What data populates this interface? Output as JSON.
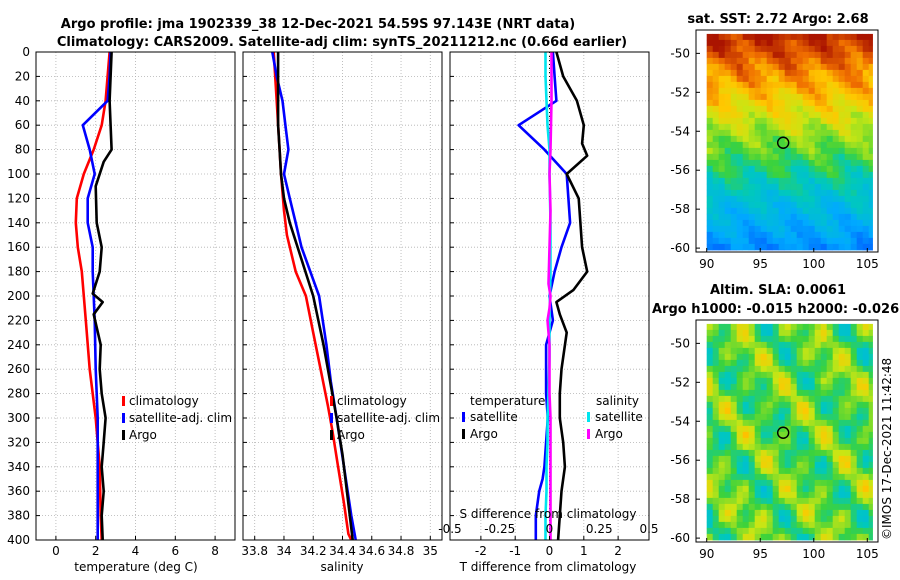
{
  "title": {
    "line1": "Argo profile: jma 1902339_38 12-Dec-2021 54.59S 97.143E (NRT data)",
    "line2": "Climatology: CARS2009. Satellite-adj clim: synTS_20211212.nc (0.66d earlier)"
  },
  "credit": "©IMOS 17-Dec-2021 11:42:48",
  "colors": {
    "climatology": "#ff0000",
    "satellite": "#0000ff",
    "argo": "#000000",
    "sal_satellite": "#00e5ee",
    "sal_argo": "#ff00ff"
  },
  "chart_data": [
    {
      "type": "line",
      "name": "temperature-profile",
      "xlabel": "temperature (deg C)",
      "ylabel": "",
      "xlim": [
        -1,
        9
      ],
      "ylim": [
        400,
        0
      ],
      "xticks": [
        "0",
        "2",
        "4",
        "6",
        "8"
      ],
      "yticks": [
        "0",
        "20",
        "40",
        "60",
        "80",
        "100",
        "120",
        "140",
        "160",
        "180",
        "200",
        "220",
        "240",
        "260",
        "280",
        "300",
        "320",
        "340",
        "360",
        "380",
        "400"
      ],
      "legend": [
        "climatology",
        "satellite-adj. clim",
        "Argo"
      ],
      "series": [
        {
          "name": "climatology",
          "color": "#ff0000",
          "x": [
            2.7,
            2.6,
            2.5,
            2.3,
            1.9,
            1.4,
            1.05,
            1.0,
            1.1,
            1.3,
            1.5,
            1.7,
            2.0,
            2.2,
            2.25,
            2.3
          ],
          "y": [
            0,
            20,
            40,
            60,
            80,
            100,
            120,
            140,
            160,
            180,
            220,
            260,
            300,
            340,
            380,
            400
          ]
        },
        {
          "name": "satellite-adj. clim",
          "color": "#0000ff",
          "x": [
            2.75,
            2.7,
            2.6,
            1.35,
            1.7,
            1.95,
            1.6,
            1.6,
            1.85,
            1.85,
            1.9,
            1.95,
            2.0,
            2.1,
            2.1,
            2.1,
            2.1
          ],
          "y": [
            0,
            20,
            40,
            60,
            80,
            100,
            120,
            140,
            160,
            180,
            200,
            220,
            260,
            300,
            340,
            380,
            400
          ]
        },
        {
          "name": "Argo",
          "color": "#000000",
          "x": [
            2.8,
            2.75,
            2.7,
            2.75,
            2.8,
            2.4,
            2.0,
            2.05,
            2.3,
            2.2,
            1.85,
            2.35,
            1.9,
            2.25,
            2.2,
            2.3,
            2.5,
            2.4,
            2.3,
            2.4,
            2.3,
            2.35
          ],
          "y": [
            0,
            20,
            40,
            60,
            80,
            90,
            110,
            140,
            160,
            180,
            198,
            205,
            215,
            240,
            260,
            280,
            300,
            320,
            340,
            360,
            380,
            400
          ]
        }
      ]
    },
    {
      "type": "line",
      "name": "salinity-profile",
      "xlabel": "salinity",
      "xlim": [
        33.72,
        35.08
      ],
      "ylim": [
        400,
        0
      ],
      "xticks": [
        "33.8",
        "34",
        "34.2",
        "34.4",
        "34.6",
        "34.8",
        "35"
      ],
      "legend": [
        "climatology",
        "satellite-adj. clim",
        "Argo"
      ],
      "series": [
        {
          "name": "climatology",
          "color": "#ff0000",
          "x": [
            33.93,
            33.95,
            33.97,
            33.98,
            34.0,
            34.02,
            34.08,
            34.15,
            34.2,
            34.25,
            34.3,
            34.33,
            34.37,
            34.41,
            34.44,
            34.46
          ],
          "y": [
            0,
            40,
            80,
            100,
            130,
            150,
            180,
            200,
            230,
            260,
            290,
            310,
            340,
            370,
            395,
            400
          ]
        },
        {
          "name": "satellite-adj. clim",
          "color": "#0000ff",
          "x": [
            33.92,
            33.95,
            33.99,
            34.01,
            34.03,
            34.0,
            34.04,
            34.08,
            34.12,
            34.18,
            34.24,
            34.29,
            34.32,
            34.36,
            34.41,
            34.46,
            34.49
          ],
          "y": [
            0,
            20,
            40,
            60,
            80,
            100,
            120,
            140,
            160,
            180,
            200,
            240,
            270,
            300,
            340,
            380,
            400
          ]
        },
        {
          "name": "Argo",
          "color": "#000000",
          "x": [
            33.96,
            33.96,
            33.96,
            33.96,
            33.97,
            33.98,
            34.0,
            34.04,
            34.12,
            34.2,
            34.27,
            34.33,
            34.36,
            34.4,
            34.43,
            34.45,
            34.47
          ],
          "y": [
            0,
            20,
            40,
            60,
            80,
            100,
            120,
            140,
            170,
            200,
            240,
            280,
            300,
            330,
            360,
            380,
            400
          ]
        }
      ]
    },
    {
      "type": "line",
      "name": "difference-from-climatology",
      "xlabel": "T difference from climatology",
      "top_xlabel": "S difference from climatology",
      "xlim": [
        -2.9,
        2.9
      ],
      "ylim": [
        400,
        0
      ],
      "xticks": [
        "-2",
        "-1",
        "0",
        "1",
        "2"
      ],
      "top_xticks": [
        "-0.5",
        "-0.25",
        "0",
        "0.25",
        "0.5"
      ],
      "legend_temperature": {
        "title": "temperature",
        "items": [
          "satellite",
          "Argo"
        ]
      },
      "legend_salinity": {
        "title": "salinity",
        "items": [
          "satellite",
          "Argo"
        ]
      },
      "series": [
        {
          "name": "T satellite",
          "color": "#0000ff",
          "x": [
            0.1,
            0.15,
            0.2,
            -0.9,
            -0.15,
            0.5,
            0.55,
            0.6,
            0.35,
            0.15,
            0.0,
            0.1,
            -0.1,
            -0.1,
            -0.1,
            -0.05,
            -0.1,
            -0.15,
            -0.2,
            -0.3,
            -0.35,
            -0.4,
            -0.4,
            -0.4
          ],
          "y": [
            0,
            20,
            40,
            60,
            80,
            100,
            120,
            140,
            160,
            180,
            200,
            220,
            240,
            260,
            280,
            300,
            320,
            340,
            350,
            360,
            370,
            380,
            390,
            400
          ]
        },
        {
          "name": "T Argo",
          "color": "#000000",
          "x": [
            0.2,
            0.4,
            0.8,
            1.0,
            0.95,
            1.1,
            0.5,
            0.85,
            0.9,
            0.95,
            1.1,
            0.7,
            0.2,
            0.3,
            0.5,
            0.35,
            0.3,
            0.3,
            0.4,
            0.45,
            0.35,
            0.3,
            0.25
          ],
          "y": [
            0,
            20,
            40,
            60,
            75,
            85,
            100,
            120,
            140,
            160,
            180,
            195,
            205,
            215,
            230,
            260,
            280,
            300,
            320,
            340,
            360,
            380,
            400
          ]
        },
        {
          "name": "S satellite",
          "color": "#00e5ee",
          "x": [
            -0.02,
            -0.02,
            -0.015,
            -0.01,
            0.0,
            0.0,
            0.005,
            0.005,
            0.0,
            0.0,
            -0.005,
            -0.01,
            -0.01,
            -0.015,
            -0.015,
            -0.02,
            -0.02,
            -0.02
          ],
          "y": [
            0,
            20,
            40,
            60,
            80,
            100,
            140,
            180,
            220,
            250,
            280,
            300,
            320,
            340,
            360,
            380,
            390,
            400
          ]
        },
        {
          "name": "S Argo",
          "color": "#ff00ff",
          "x": [
            0.01,
            0.01,
            0.005,
            0.0,
            0.005,
            0.0,
            -0.005,
            0.005,
            0.0,
            -0.01,
            0.0,
            0.0,
            0.0,
            0.005,
            0.005,
            0.005,
            0.005
          ],
          "y": [
            0,
            40,
            80,
            100,
            130,
            160,
            190,
            200,
            210,
            220,
            240,
            260,
            280,
            300,
            320,
            360,
            400
          ]
        }
      ]
    },
    {
      "type": "heatmap",
      "name": "sat-sst-map",
      "title": "sat. SST: 2.72 Argo: 2.68",
      "xlim": [
        89,
        106
      ],
      "ylim": [
        -60.2,
        -48.8
      ],
      "xticks": [
        "90",
        "95",
        "100",
        "105"
      ],
      "yticks": [
        "-50",
        "-52",
        "-54",
        "-56",
        "-58",
        "-60"
      ],
      "argo_position": {
        "lon": 97.143,
        "lat": -54.59
      }
    },
    {
      "type": "heatmap",
      "name": "altim-sla-map",
      "title": "Altim. SLA: 0.0061",
      "subtitle": "Argo h1000: -0.015 h2000: -0.026",
      "xlim": [
        89,
        106
      ],
      "ylim": [
        -60.2,
        -48.8
      ],
      "xticks": [
        "90",
        "95",
        "100",
        "105"
      ],
      "yticks": [
        "-50",
        "-52",
        "-54",
        "-56",
        "-58",
        "-60"
      ],
      "argo_position": {
        "lon": 97.143,
        "lat": -54.59
      }
    }
  ]
}
